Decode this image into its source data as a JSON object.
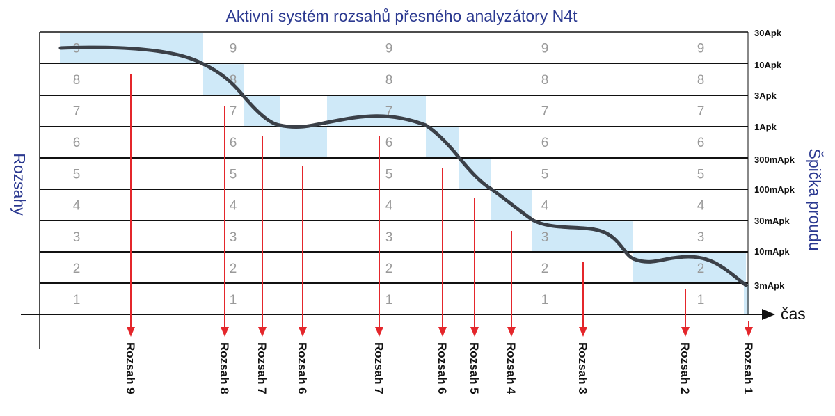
{
  "title": "Aktivní systém rozsahů přesného analyzátory N4t",
  "y_axis_label": "Rozsahy",
  "right_axis_label": "Špička proudu",
  "x_axis_label": "čas",
  "colors": {
    "title": "#2b3990",
    "highlight": "#cfe9f8",
    "curve": "#3b4048",
    "arrow": "#e4262b",
    "level_number": "#9a9a9a"
  },
  "level_numbers": [
    "1",
    "2",
    "3",
    "4",
    "5",
    "6",
    "7",
    "8",
    "9"
  ],
  "current_labels": [
    "3mApk",
    "10mApk",
    "30mApk",
    "100mApk",
    "300mApk",
    "1Apk",
    "3Apk",
    "10Apk",
    "30Apk"
  ],
  "range_steps": [
    {
      "label": "Rozsah 9",
      "range": 9
    },
    {
      "label": "Rozsah 8",
      "range": 8
    },
    {
      "label": "Rozsah 7",
      "range": 7
    },
    {
      "label": "Rozsah 6",
      "range": 6
    },
    {
      "label": "Rozsah 7",
      "range": 7
    },
    {
      "label": "Rozsah 6",
      "range": 6
    },
    {
      "label": "Rozsah 5",
      "range": 5
    },
    {
      "label": "Rozsah 4",
      "range": 4
    },
    {
      "label": "Rozsah 3",
      "range": 3
    },
    {
      "label": "Rozsah 2",
      "range": 2
    },
    {
      "label": "Rozsah 1",
      "range": 1
    }
  ]
}
